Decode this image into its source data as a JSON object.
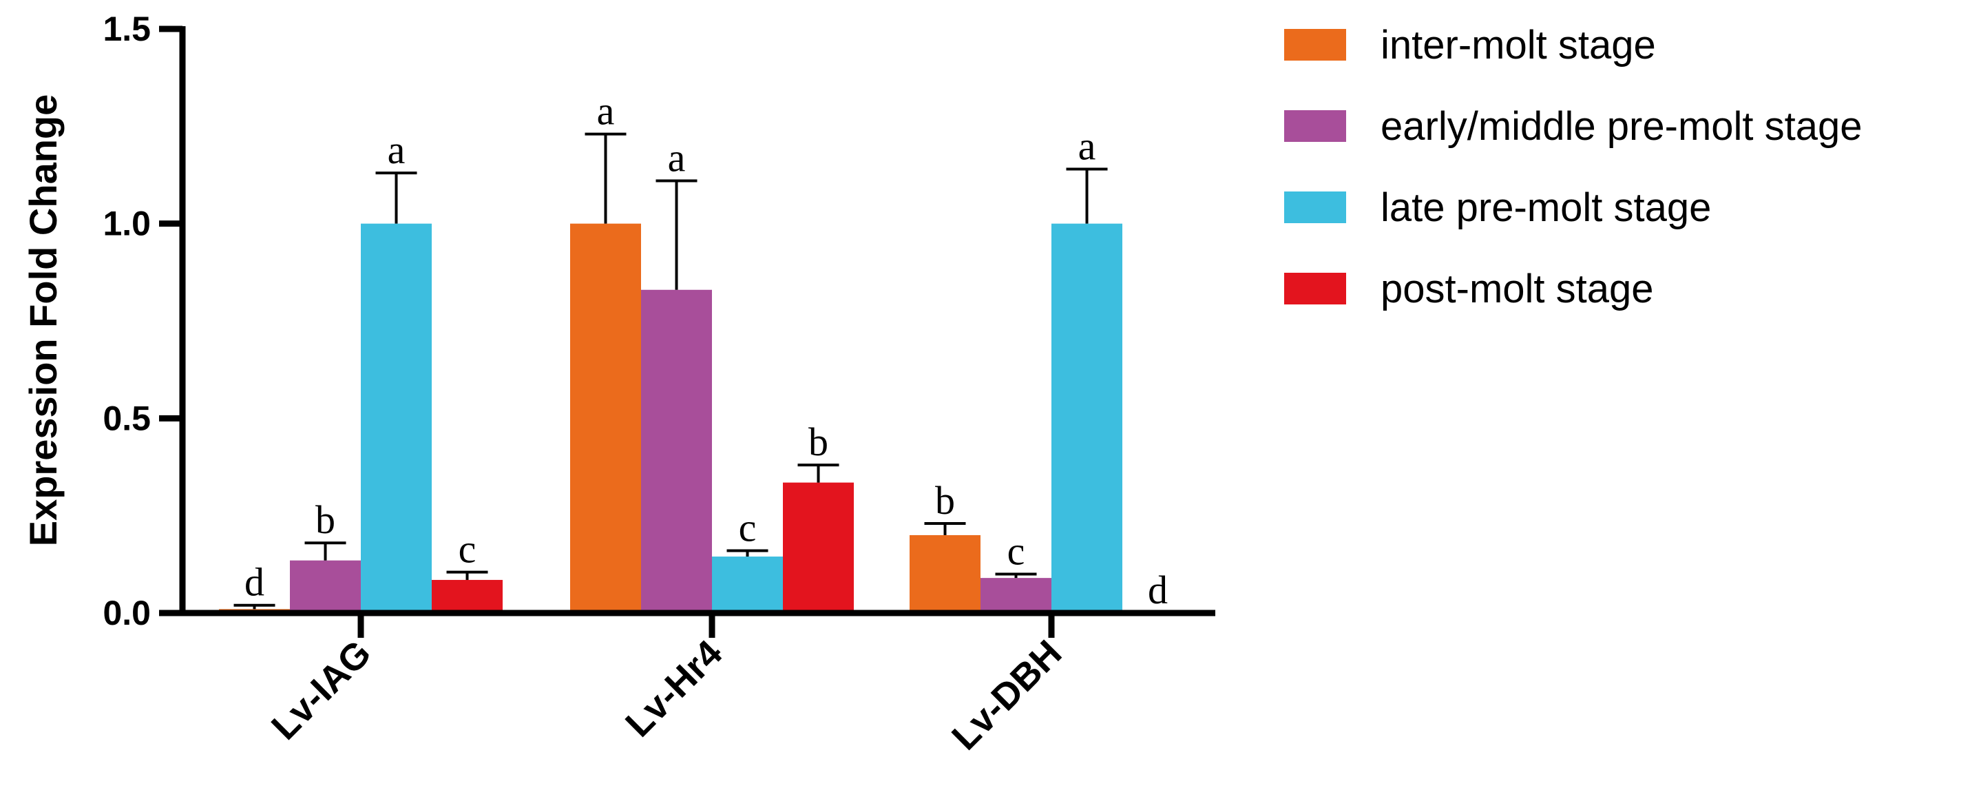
{
  "chart_data": {
    "type": "bar",
    "title": "",
    "xlabel": "",
    "ylabel": "Expression Fold Change",
    "ylim": [
      0,
      1.5
    ],
    "yticks": [
      "0.0",
      "0.5",
      "1.0",
      "1.5"
    ],
    "categories": [
      "Lv-IAG",
      "Lv-Hr4",
      "Lv-DBH"
    ],
    "legend_position": "right",
    "grid": false,
    "series": [
      {
        "name": "inter-molt stage",
        "color": "#EB6B1C",
        "values": [
          0.01,
          1.0,
          0.2
        ],
        "errors": [
          0.01,
          0.23,
          0.03
        ],
        "letters": [
          "d",
          "a",
          "b"
        ]
      },
      {
        "name": "early/middle pre-molt stage",
        "color": "#A84E9A",
        "values": [
          0.135,
          0.83,
          0.09
        ],
        "errors": [
          0.045,
          0.28,
          0.01
        ],
        "letters": [
          "b",
          "a",
          "c"
        ]
      },
      {
        "name": "late pre-molt stage",
        "color": "#3DBEDF",
        "values": [
          1.0,
          0.145,
          1.0
        ],
        "errors": [
          0.13,
          0.015,
          0.14
        ],
        "letters": [
          "a",
          "c",
          "a"
        ]
      },
      {
        "name": "post-molt stage",
        "color": "#E3141E",
        "values": [
          0.085,
          0.335,
          0.0
        ],
        "errors": [
          0.02,
          0.045,
          0.0
        ],
        "letters": [
          "c",
          "b",
          "d"
        ]
      }
    ]
  }
}
